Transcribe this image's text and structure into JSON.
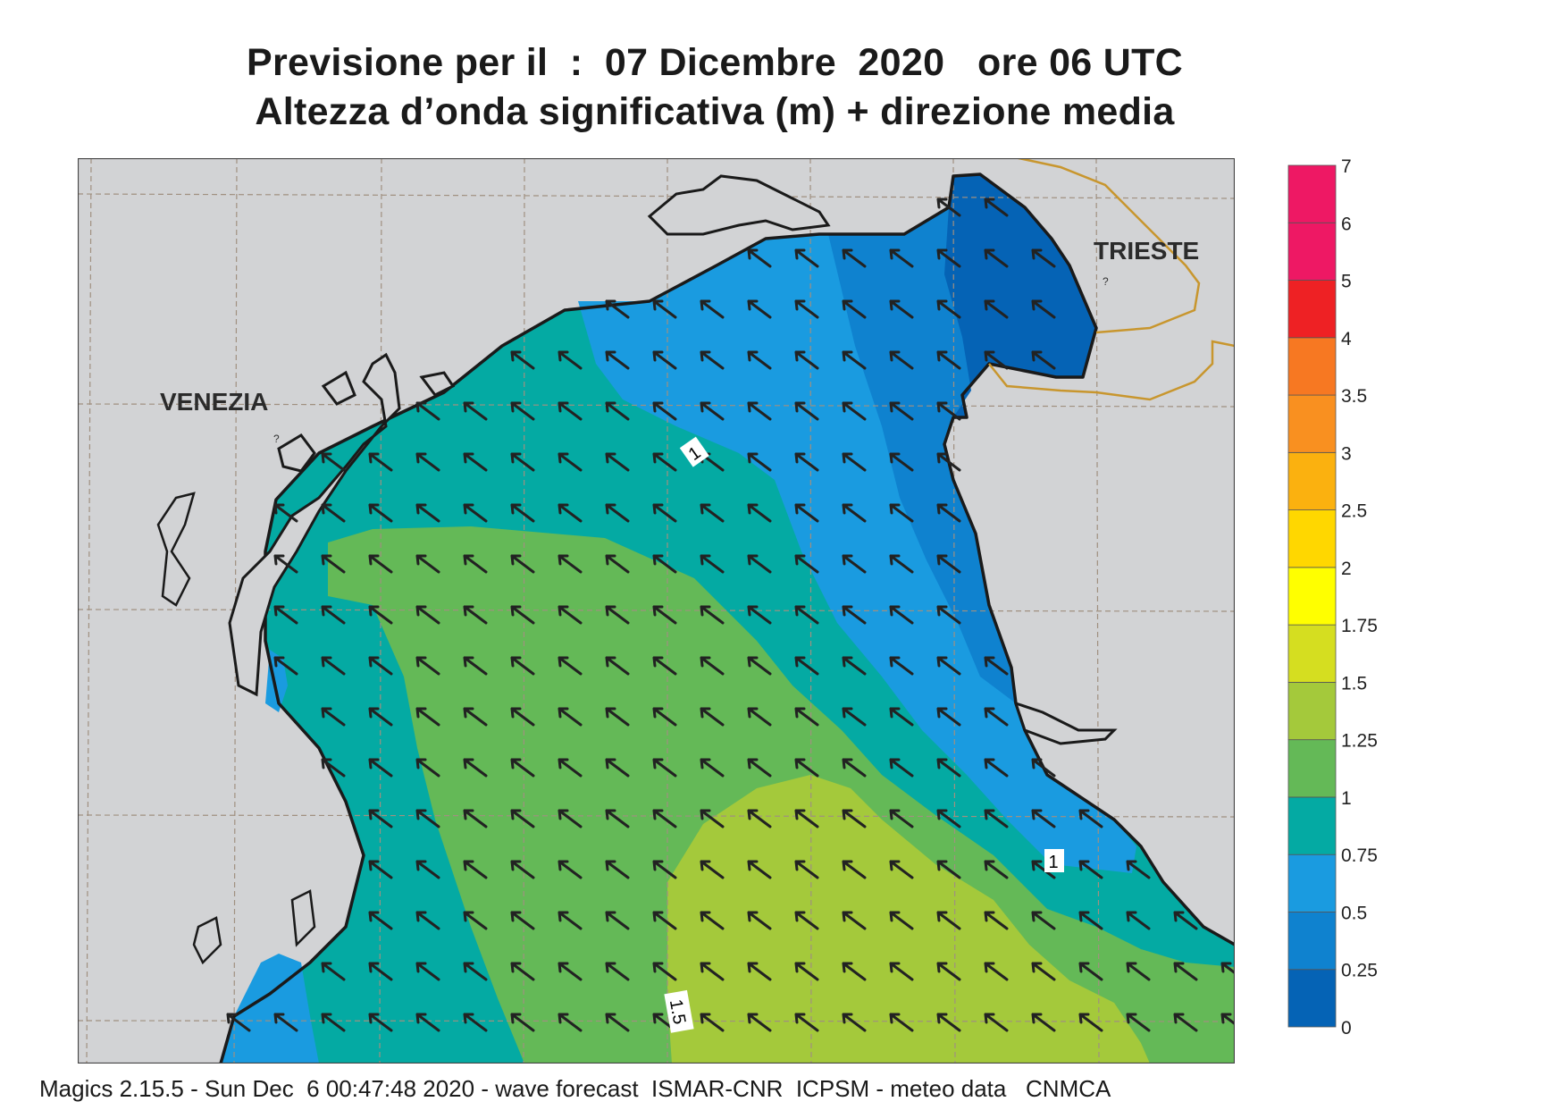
{
  "header": {
    "title_line1": "Previsione per il  :  07 Dicembre  2020   ore 06 UTC",
    "title_line2": "Altezza d’onda significativa (m) + direzione media"
  },
  "map": {
    "places": [
      {
        "name": "VENEZIA"
      },
      {
        "name": "TRIESTE"
      }
    ],
    "contour_labels": [
      "1",
      "1",
      "1.5"
    ],
    "colors": {
      "land": "#d2d3d5",
      "coast": "#1a1a1a",
      "border": "#c8962e",
      "grid": "#a09080",
      "arrow": "#222222"
    },
    "mean_direction": "north-west"
  },
  "legend": {
    "labels": [
      "0",
      "0.25",
      "0.5",
      "0.75",
      "1",
      "1.25",
      "1.5",
      "1.75",
      "2",
      "2.5",
      "3",
      "3.5",
      "4",
      "5",
      "6",
      "7"
    ],
    "colors": [
      "#0563b5",
      "#0f82cf",
      "#1a9be0",
      "#04aaa3",
      "#64b957",
      "#a4c93b",
      "#d5de20",
      "#ffff00",
      "#ffd700",
      "#fbb10f",
      "#f99020",
      "#f77822",
      "#ee2124",
      "#ee1864",
      "#ee1864"
    ]
  },
  "footer": {
    "text": "Magics 2.15.5 - Sun Dec  6 00:47:48 2020 - wave forecast  ISMAR-CNR  ICPSM - meteo data   CNMCA"
  }
}
